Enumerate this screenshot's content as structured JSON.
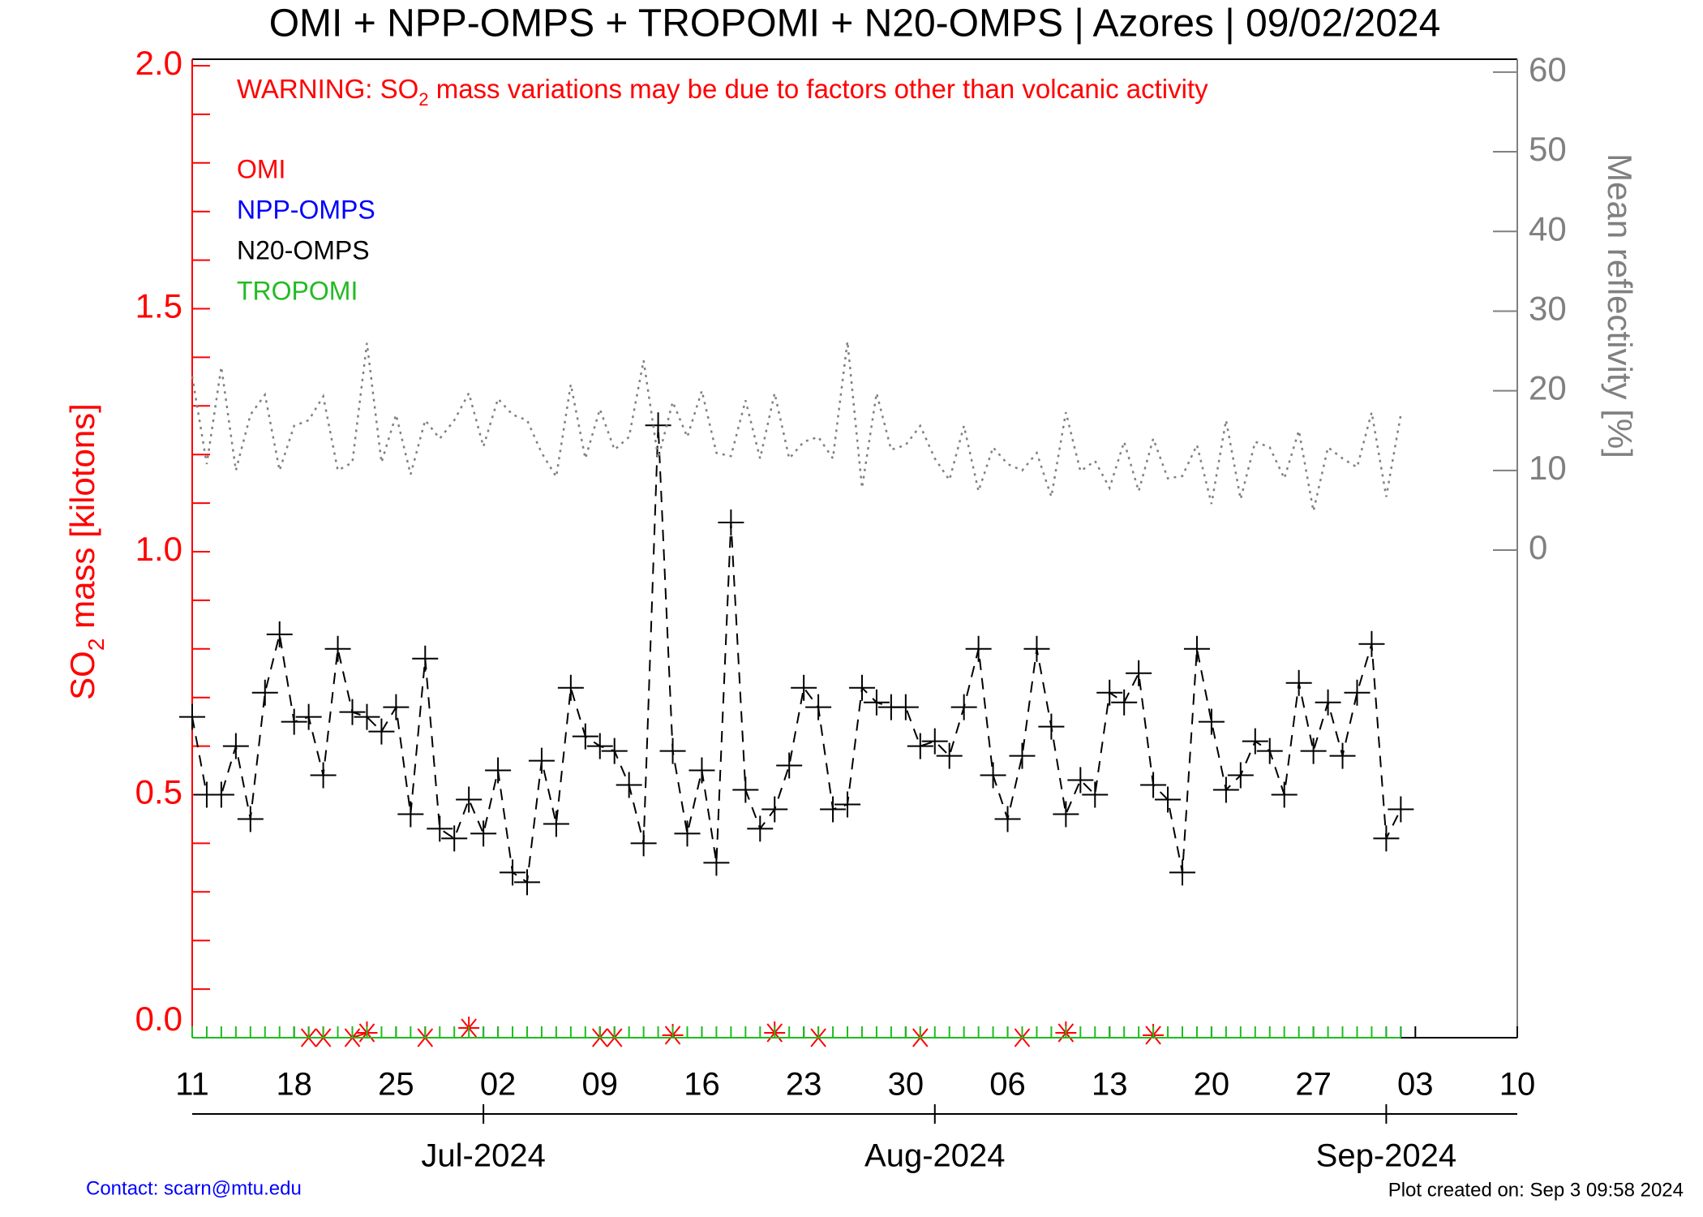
{
  "chart_data": {
    "type": "line",
    "title": "OMI + NPP-OMPS + TROPOMI + N20-OMPS | Azores | 09/02/2024",
    "warning": [
      "WARNING: SO",
      "2",
      " mass variations may be due to factors other than volcanic activity"
    ],
    "ylabel": [
      "SO",
      "2",
      " mass [kilotons]"
    ],
    "y2label": "Mean reflectivity [%]",
    "contact": "Contact: scarn@mtu.edu",
    "created": "Plot created on: Sep  3 09:58 2024",
    "legend": "upper left",
    "xlim": [
      "2024-06-11",
      "2024-09-10"
    ],
    "xticks": [
      {
        "value": "2024-06-11",
        "label": "11"
      },
      {
        "value": "2024-06-18",
        "label": "18"
      },
      {
        "value": "2024-06-25",
        "label": "25"
      },
      {
        "value": "2024-07-02",
        "label": "02"
      },
      {
        "value": "2024-07-09",
        "label": "09"
      },
      {
        "value": "2024-07-16",
        "label": "16"
      },
      {
        "value": "2024-07-23",
        "label": "23"
      },
      {
        "value": "2024-07-30",
        "label": "30"
      },
      {
        "value": "2024-08-06",
        "label": "06"
      },
      {
        "value": "2024-08-13",
        "label": "13"
      },
      {
        "value": "2024-08-20",
        "label": "20"
      },
      {
        "value": "2024-08-27",
        "label": "27"
      },
      {
        "value": "2024-09-03",
        "label": "03"
      },
      {
        "value": "2024-09-10",
        "label": "10"
      }
    ],
    "xticks2": [
      {
        "value": "2024-07-01",
        "label": "Jul-2024"
      },
      {
        "value": "2024-08-01",
        "label": "Aug-2024"
      },
      {
        "value": "2024-09-01",
        "label": "Sep-2024"
      }
    ],
    "ylim": [
      0,
      2
    ],
    "yticks": [
      {
        "value": 0,
        "label": "0.0"
      },
      0.5,
      {
        "value": 1,
        "label": "1.0"
      },
      1.5,
      {
        "value": 2,
        "label": "2.0"
      }
    ],
    "yminorticks": [
      0.1,
      0.2,
      0.3,
      0.4,
      0.6,
      0.7,
      0.8,
      0.9,
      1.1,
      1.2,
      1.3,
      1.4,
      1.6,
      1.7,
      1.8,
      1.9
    ],
    "y2lim": [
      -61.2,
      60.8
    ],
    "y2ticks": [
      0,
      10,
      20,
      30,
      40,
      50,
      60
    ],
    "x": [
      "2024-06-11",
      "2024-06-12",
      "2024-06-13",
      "2024-06-14",
      "2024-06-15",
      "2024-06-16",
      "2024-06-17",
      "2024-06-18",
      "2024-06-19",
      "2024-06-20",
      "2024-06-21",
      "2024-06-22",
      "2024-06-23",
      "2024-06-24",
      "2024-06-25",
      "2024-06-26",
      "2024-06-27",
      "2024-06-28",
      "2024-06-29",
      "2024-06-30",
      "2024-07-01",
      "2024-07-02",
      "2024-07-03",
      "2024-07-04",
      "2024-07-05",
      "2024-07-06",
      "2024-07-07",
      "2024-07-08",
      "2024-07-09",
      "2024-07-10",
      "2024-07-11",
      "2024-07-12",
      "2024-07-13",
      "2024-07-14",
      "2024-07-15",
      "2024-07-16",
      "2024-07-17",
      "2024-07-18",
      "2024-07-19",
      "2024-07-20",
      "2024-07-21",
      "2024-07-22",
      "2024-07-23",
      "2024-07-24",
      "2024-07-25",
      "2024-07-26",
      "2024-07-27",
      "2024-07-28",
      "2024-07-29",
      "2024-07-30",
      "2024-07-31",
      "2024-08-01",
      "2024-08-02",
      "2024-08-03",
      "2024-08-04",
      "2024-08-05",
      "2024-08-06",
      "2024-08-07",
      "2024-08-08",
      "2024-08-09",
      "2024-08-10",
      "2024-08-11",
      "2024-08-12",
      "2024-08-13",
      "2024-08-14",
      "2024-08-15",
      "2024-08-16",
      "2024-08-17",
      "2024-08-18",
      "2024-08-19",
      "2024-08-20",
      "2024-08-21",
      "2024-08-22",
      "2024-08-23",
      "2024-08-24",
      "2024-08-25",
      "2024-08-26",
      "2024-08-27",
      "2024-08-28",
      "2024-08-29",
      "2024-08-30",
      "2024-08-31",
      "2024-09-01",
      "2024-09-02"
    ],
    "series": [
      {
        "name": "OMI",
        "color": "#ff0000",
        "marker": "asterisk",
        "linestyle": "solid",
        "values": [
          null,
          null,
          null,
          null,
          null,
          null,
          null,
          null,
          0,
          0,
          null,
          0,
          0.01,
          null,
          null,
          null,
          0,
          null,
          null,
          0.02,
          null,
          null,
          null,
          null,
          null,
          null,
          null,
          null,
          0,
          0,
          null,
          null,
          null,
          0.005,
          null,
          null,
          null,
          null,
          null,
          null,
          0.01,
          null,
          null,
          0,
          null,
          null,
          null,
          null,
          null,
          null,
          0,
          null,
          null,
          null,
          null,
          null,
          null,
          0,
          null,
          null,
          0.01,
          null,
          null,
          null,
          null,
          null,
          0.005,
          null,
          null,
          null,
          null,
          null,
          null,
          null,
          null,
          null,
          null,
          null,
          null,
          null,
          null,
          null,
          null,
          null
        ]
      },
      {
        "name": "NPP-OMPS",
        "color": "#0000ff",
        "marker": "vbar",
        "linestyle": "solid",
        "values": [
          null,
          null,
          null,
          null,
          null,
          null,
          null,
          null,
          null,
          null,
          null,
          null,
          null,
          null,
          null,
          null,
          null,
          null,
          null,
          null,
          0,
          null,
          null,
          null,
          null,
          null,
          null,
          null,
          null,
          null,
          null,
          null,
          null,
          null,
          null,
          null,
          null,
          null,
          null,
          null,
          null,
          null,
          null,
          null,
          null,
          null,
          null,
          null,
          null,
          null,
          null,
          null,
          null,
          null,
          null,
          null,
          null,
          null,
          null,
          null,
          null,
          null,
          null,
          null,
          null,
          null,
          null,
          null,
          null,
          null,
          null,
          null,
          null,
          null,
          null,
          null,
          null,
          null,
          null,
          null,
          null,
          null,
          0,
          0
        ]
      },
      {
        "name": "N20-OMPS",
        "color": "#000000",
        "marker": "plus",
        "linestyle": "dashed",
        "values": [
          0.66,
          0.5,
          0.5,
          0.6,
          0.45,
          0.71,
          0.83,
          0.65,
          0.66,
          0.54,
          0.8,
          0.67,
          0.66,
          0.63,
          0.68,
          0.46,
          0.78,
          0.43,
          0.41,
          0.49,
          0.42,
          0.55,
          0.34,
          0.32,
          0.57,
          0.44,
          0.72,
          0.62,
          0.6,
          0.59,
          0.52,
          0.4,
          1.26,
          0.59,
          0.42,
          0.55,
          0.36,
          1.06,
          0.51,
          0.43,
          0.47,
          0.56,
          0.72,
          0.68,
          0.47,
          0.48,
          0.72,
          0.69,
          0.68,
          0.68,
          0.6,
          0.61,
          0.58,
          0.68,
          0.8,
          0.54,
          0.45,
          0.58,
          0.8,
          0.64,
          0.46,
          0.53,
          0.5,
          0.71,
          0.69,
          0.75,
          0.52,
          0.49,
          0.34,
          0.8,
          0.65,
          0.51,
          0.54,
          0.61,
          0.59,
          0.5,
          0.73,
          0.59,
          0.69,
          0.58,
          0.71,
          0.81,
          0.41,
          0.47
        ]
      },
      {
        "name": "TROPOMI",
        "color": "#22bb22",
        "marker": "vbar",
        "linestyle": "solid",
        "values": [
          0,
          0,
          0,
          0,
          0,
          0,
          0,
          0,
          0,
          0,
          0,
          0,
          0,
          0,
          0,
          0,
          0,
          0,
          0,
          0,
          0,
          0,
          0,
          0,
          0,
          0,
          0,
          0,
          0,
          0,
          0,
          0,
          0,
          0,
          0,
          0,
          0,
          0,
          0,
          0,
          0,
          0,
          0,
          0,
          0,
          0,
          0,
          0,
          0,
          0,
          0,
          0,
          0,
          0,
          0,
          0,
          0,
          0,
          0,
          0,
          0,
          0,
          0,
          0,
          0,
          0,
          0,
          0,
          0,
          0,
          0,
          0,
          0,
          0,
          0,
          0,
          0,
          0,
          0,
          0,
          0,
          0,
          0,
          0
        ]
      },
      {
        "color": "#808080",
        "axis": "y2",
        "marker": "none",
        "linestyle": "dotted",
        "values": [
          21.8,
          10.8,
          23.0,
          10.0,
          17.0,
          19.5,
          10.0,
          15.6,
          16.3,
          19.3,
          10.0,
          11.0,
          26.0,
          11.0,
          17.0,
          9.5,
          16.3,
          14.0,
          16.3,
          19.7,
          13.0,
          19.0,
          17.0,
          16.3,
          12.2,
          9.2,
          20.8,
          11.5,
          17.7,
          12.6,
          14.2,
          23.8,
          11.5,
          18.6,
          14.2,
          20.0,
          12.2,
          11.8,
          18.8,
          11.5,
          19.7,
          11.5,
          13.6,
          14.2,
          11.5,
          26.2,
          7.8,
          19.7,
          12.6,
          13.2,
          15.6,
          11.5,
          8.8,
          15.6,
          7.4,
          12.9,
          10.8,
          10.0,
          12.2,
          6.7,
          17.3,
          9.9,
          11.2,
          7.8,
          13.6,
          7.4,
          14.0,
          9.0,
          9.3,
          13.2,
          5.8,
          16.3,
          6.4,
          13.6,
          12.9,
          9.0,
          15.0,
          4.9,
          12.9,
          11.5,
          10.4,
          17.3,
          6.7,
          17.0
        ]
      }
    ]
  }
}
